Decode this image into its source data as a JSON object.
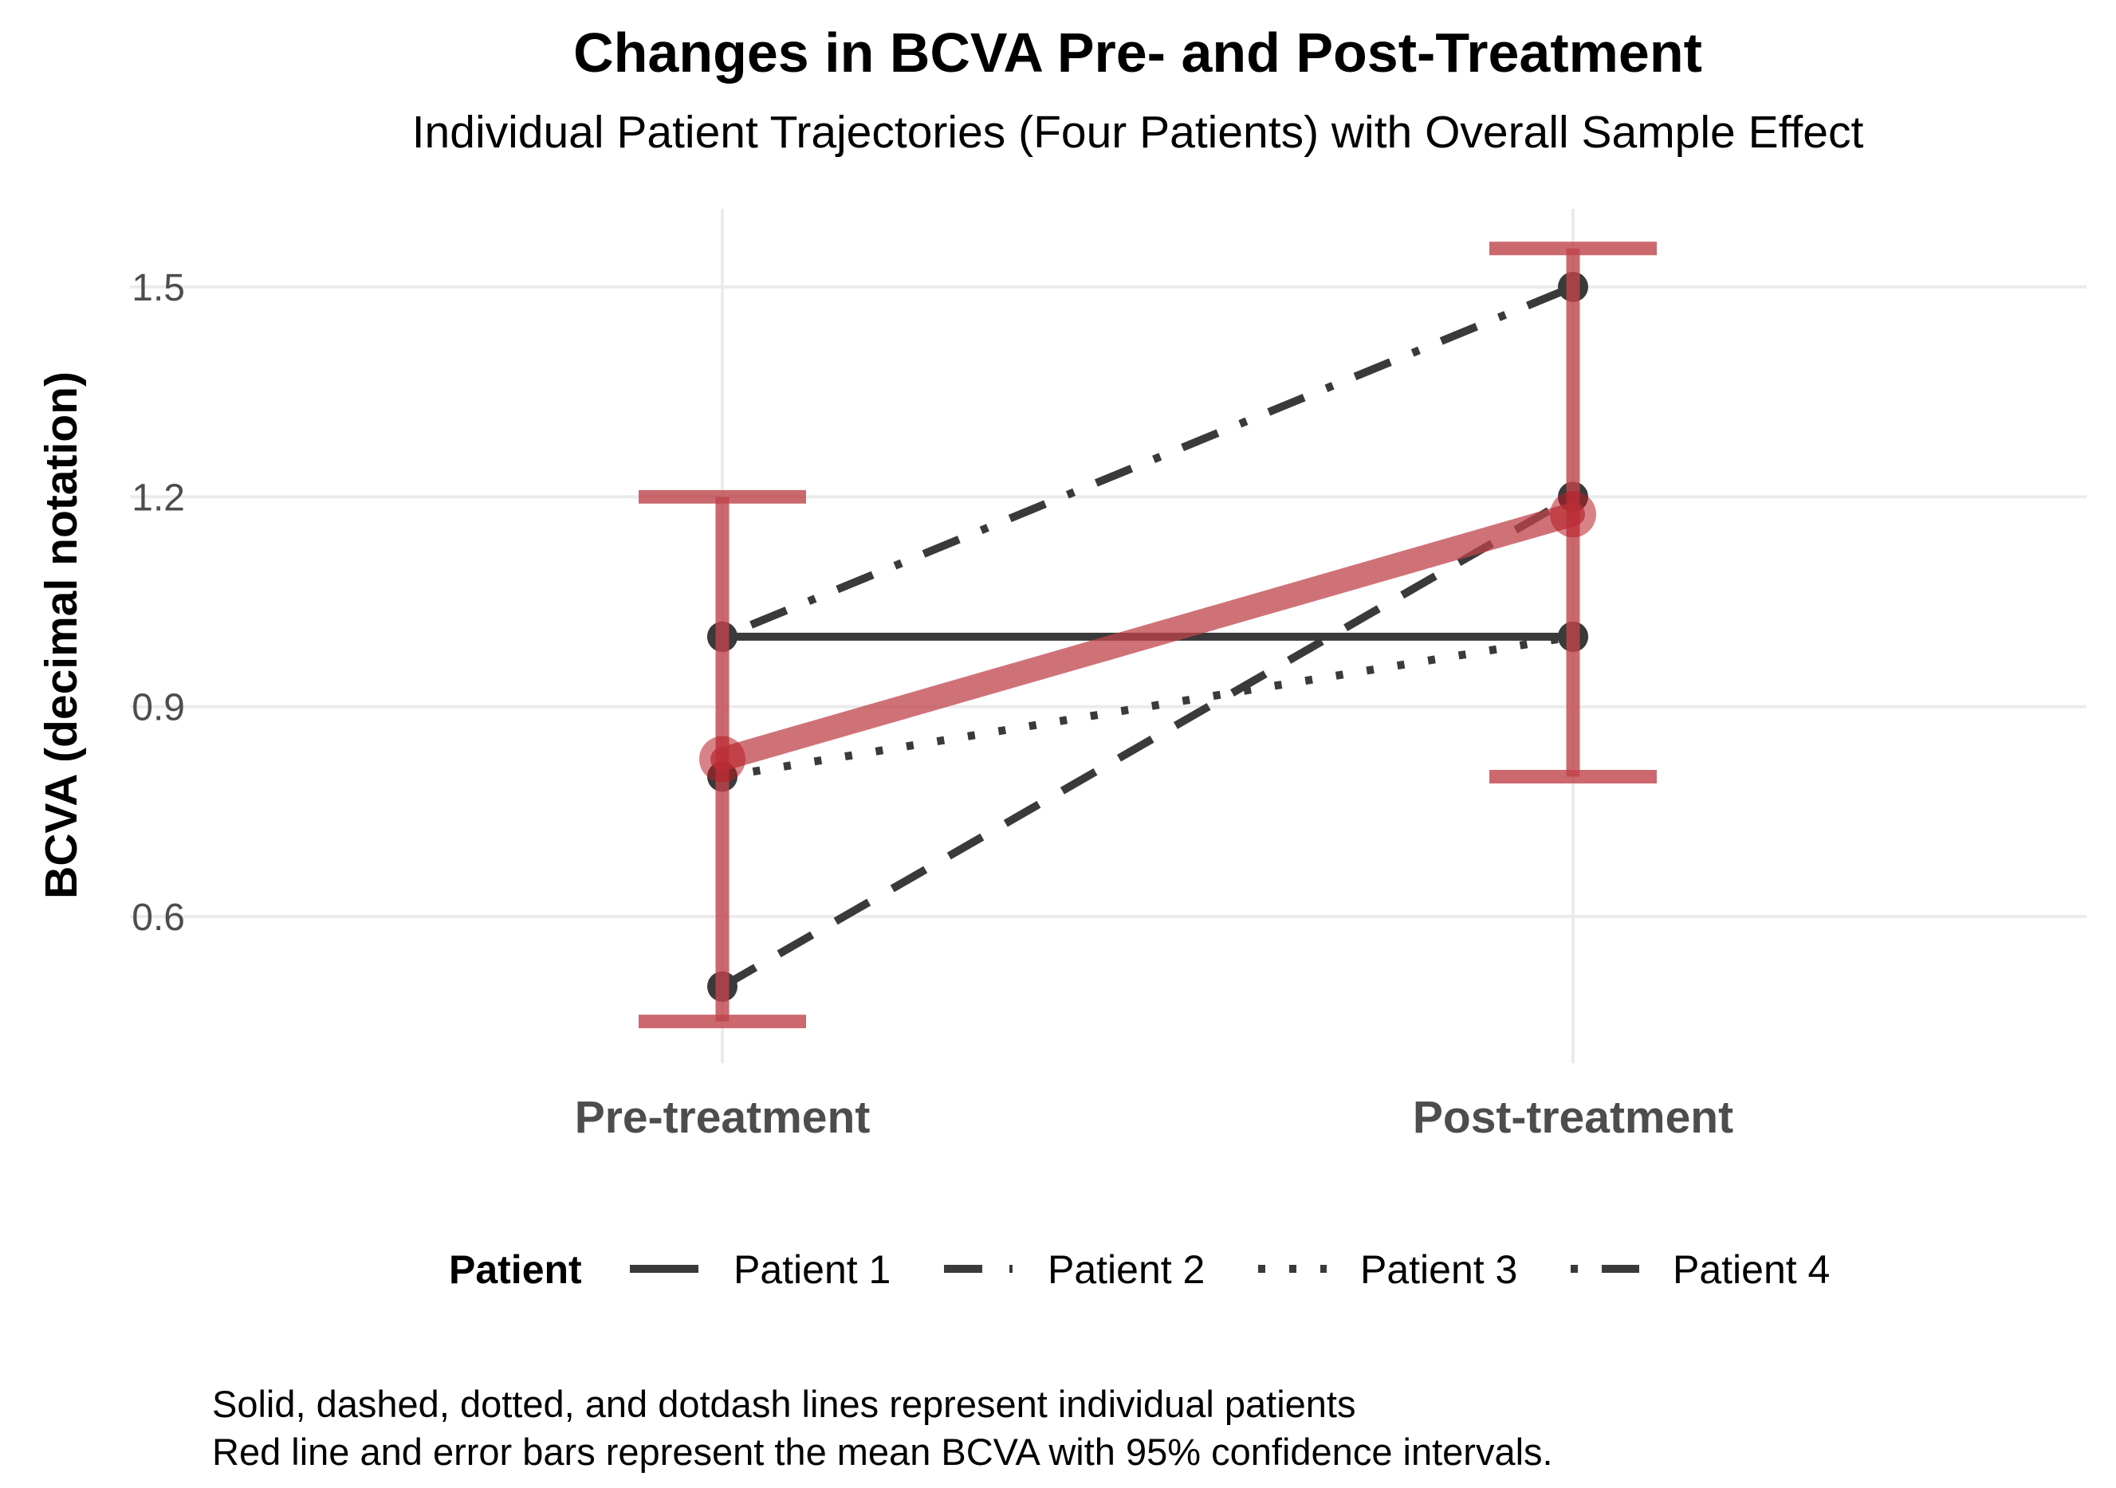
{
  "chart_data": {
    "type": "line",
    "title": "Changes in BCVA Pre- and Post-Treatment",
    "subtitle": "Individual Patient Trajectories (Four Patients) with Overall Sample Effect",
    "xlabel": "",
    "ylabel": "BCVA (decimal notation)",
    "categories": [
      "Pre-treatment",
      "Post-treatment"
    ],
    "yticks": [
      0.6,
      0.9,
      1.2,
      1.5
    ],
    "ytick_labels": [
      "0.6",
      "0.9",
      "1.2",
      "1.5"
    ],
    "ylim": [
      0.43,
      1.61
    ],
    "grid": true,
    "legend": {
      "title": "Patient",
      "position": "bottom"
    },
    "series": [
      {
        "name": "Patient 1",
        "values": [
          1.0,
          1.0
        ],
        "linetype": "solid"
      },
      {
        "name": "Patient 2",
        "values": [
          0.5,
          1.2
        ],
        "linetype": "dashed"
      },
      {
        "name": "Patient 3",
        "values": [
          0.8,
          1.0
        ],
        "linetype": "dotted"
      },
      {
        "name": "Patient 4",
        "values": [
          1.0,
          1.5
        ],
        "linetype": "dotdash"
      }
    ],
    "mean": {
      "values": [
        0.825,
        1.175
      ],
      "ci_lower": [
        0.45,
        0.8
      ],
      "ci_upper": [
        1.2,
        1.555
      ]
    },
    "colors": {
      "patient": "#3a3a3a",
      "mean": "#c0444c",
      "mean_point": "#b81c24",
      "grid": "#ebebeb"
    },
    "caption": [
      "Solid, dashed, dotted, and dotdash lines represent individual patients",
      "Red line and error bars represent the mean BCVA with 95% confidence intervals."
    ]
  }
}
